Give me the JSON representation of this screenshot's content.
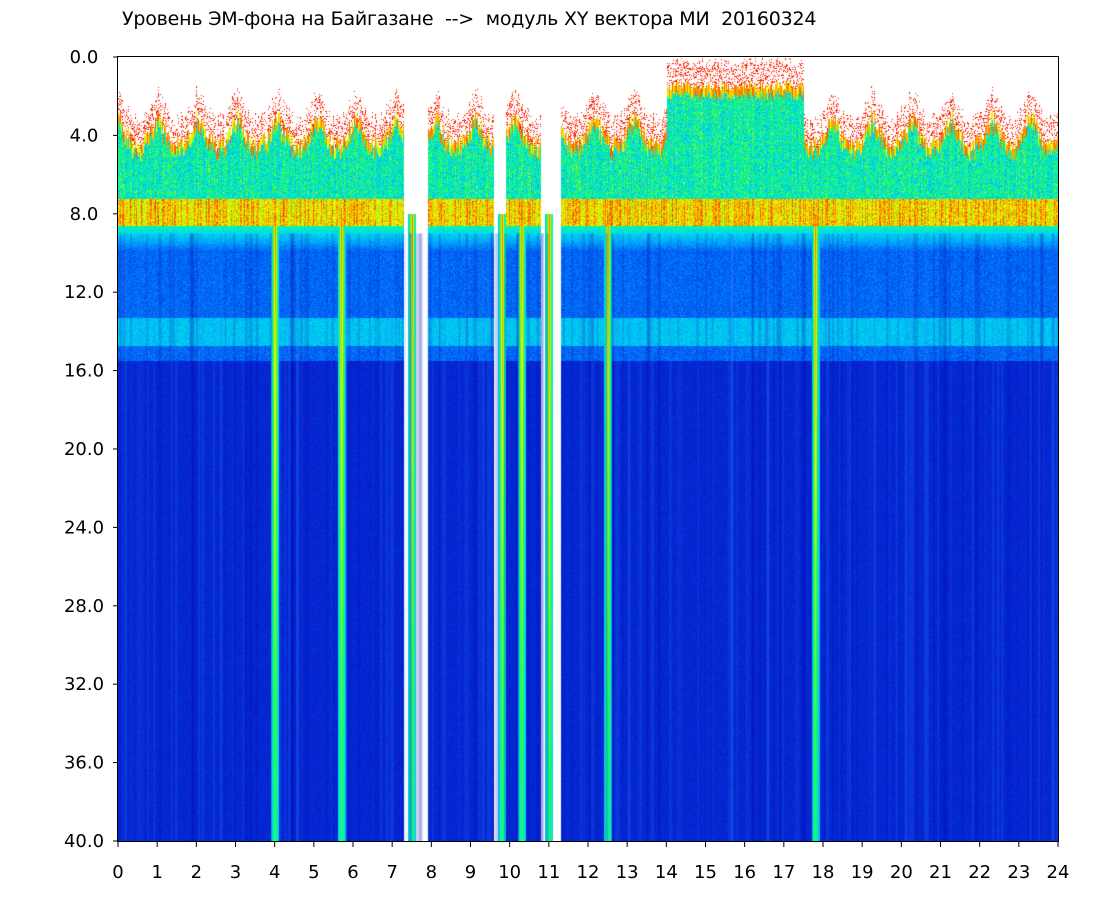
{
  "chart_data": {
    "type": "heatmap",
    "title": "Уровень ЭМ-фона на Байгазане  -->  модуль XY вектора МИ  20160324",
    "xlabel": "",
    "ylabel": "",
    "x_ticks": [
      "0",
      "1",
      "2",
      "3",
      "4",
      "5",
      "6",
      "7",
      "8",
      "9",
      "10",
      "11",
      "12",
      "13",
      "14",
      "15",
      "16",
      "17",
      "18",
      "19",
      "20",
      "21",
      "22",
      "23",
      "24"
    ],
    "y_ticks": [
      "0.0",
      "4.0",
      "8.0",
      "12.0",
      "16.0",
      "20.0",
      "24.0",
      "28.0",
      "32.0",
      "36.0",
      "40.0"
    ],
    "xlim": [
      0,
      24
    ],
    "ylim": [
      0,
      40
    ],
    "y_inverted": true,
    "colormap": [
      "#0000c8",
      "#0060ff",
      "#00e0e0",
      "#00ff40",
      "#ffff00",
      "#ff2000"
    ],
    "background_color": "#0a14c0",
    "high_intensity_band_hours": [
      [
        0.0,
        7.3
      ],
      [
        7.9,
        9.6
      ],
      [
        10.6,
        10.8
      ],
      [
        11.3,
        24.0
      ]
    ],
    "gap_hours": [
      [
        7.3,
        7.9
      ],
      [
        9.6,
        9.9
      ],
      [
        10.8,
        11.3
      ]
    ],
    "bright_vertical_streaks_hours": [
      7.5,
      9.8,
      10.3,
      11.0,
      4.0,
      5.7,
      12.5,
      17.8
    ],
    "high_level_band_y_range": [
      1.0,
      8.5
    ],
    "red_band_y": 8.0,
    "secondary_band_y": 14.0
  }
}
